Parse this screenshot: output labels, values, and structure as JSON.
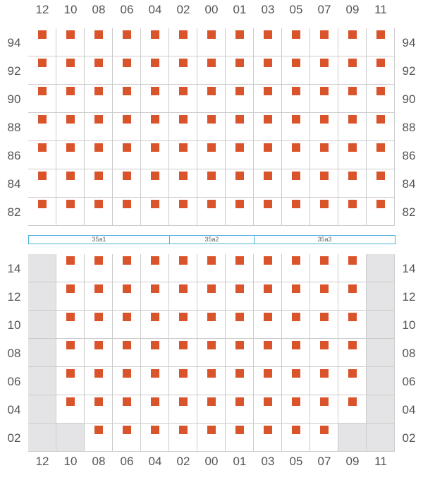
{
  "columns": [
    "12",
    "10",
    "08",
    "06",
    "04",
    "02",
    "00",
    "01",
    "03",
    "05",
    "07",
    "09",
    "11"
  ],
  "upper_block": {
    "rows": [
      "94",
      "92",
      "90",
      "88",
      "86",
      "84",
      "82"
    ]
  },
  "lower_block": {
    "rows": [
      "14",
      "12",
      "10",
      "08",
      "06",
      "04",
      "02"
    ],
    "unavailable_cells": {
      "14": [
        "12",
        "11"
      ],
      "12": [
        "12",
        "11"
      ],
      "10": [
        "12",
        "11"
      ],
      "08": [
        "12",
        "11"
      ],
      "06": [
        "12",
        "11"
      ],
      "04": [
        "12",
        "11"
      ],
      "02": [
        "12",
        "10",
        "09",
        "11"
      ]
    }
  },
  "sections": [
    {
      "label": "35a1",
      "start_col": 0,
      "span": 5
    },
    {
      "label": "35a2",
      "start_col": 5,
      "span": 3
    },
    {
      "label": "35a3",
      "start_col": 8,
      "span": 5
    }
  ],
  "colors": {
    "seat": "#d9532b",
    "unavailable": "#e4e4e6",
    "section_border": "#4ab0d9",
    "grid_line": "#cccccc"
  }
}
